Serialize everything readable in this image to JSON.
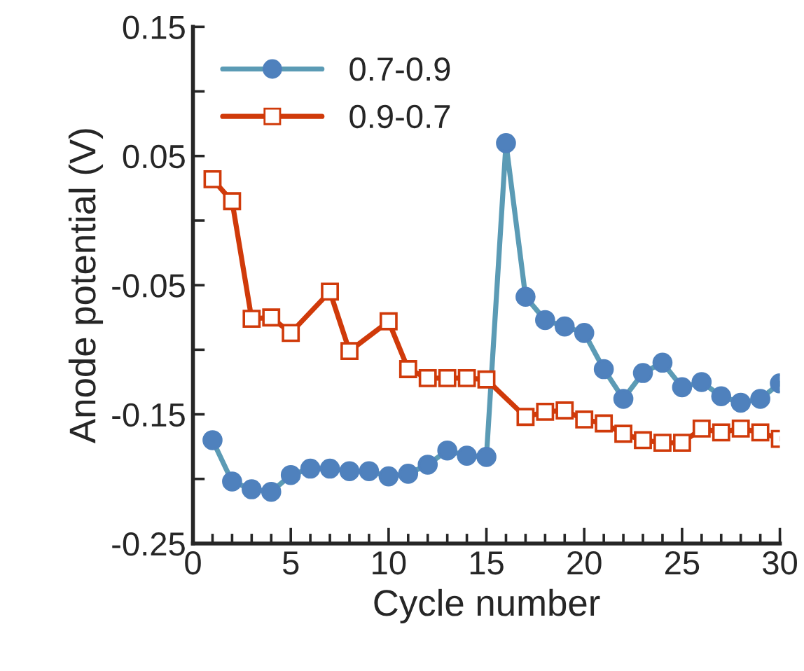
{
  "chart_data": {
    "type": "line",
    "xlabel": "Cycle number",
    "ylabel": "Anode potential (V)",
    "x": [
      1,
      2,
      3,
      4,
      5,
      6,
      7,
      8,
      9,
      10,
      11,
      12,
      13,
      14,
      15,
      16,
      17,
      18,
      19,
      20,
      21,
      22,
      23,
      24,
      25,
      26,
      27,
      28,
      29,
      30
    ],
    "series": [
      {
        "name": "0.7-0.9",
        "color": "#4f81bd",
        "marker": "circle",
        "values": [
          -0.17,
          -0.202,
          -0.208,
          -0.21,
          -0.197,
          -0.192,
          -0.192,
          -0.194,
          -0.194,
          -0.198,
          -0.196,
          -0.189,
          -0.178,
          -0.182,
          -0.183,
          0.06,
          -0.059,
          -0.077,
          -0.082,
          -0.087,
          -0.115,
          -0.138,
          -0.118,
          -0.11,
          -0.129,
          -0.125,
          -0.136,
          -0.141,
          -0.138,
          -0.126
        ]
      },
      {
        "name": "0.9-0.7",
        "color": "#d03a0a",
        "marker": "square",
        "values": [
          0.032,
          0.015,
          -0.076,
          -0.075,
          -0.087,
          null,
          -0.055,
          -0.101,
          null,
          -0.078,
          -0.115,
          -0.122,
          -0.122,
          -0.122,
          -0.123,
          null,
          -0.152,
          -0.148,
          -0.147,
          -0.154,
          -0.157,
          -0.165,
          -0.17,
          -0.172,
          -0.172,
          -0.161,
          -0.164,
          -0.161,
          -0.164,
          -0.169
        ]
      }
    ],
    "xlim": [
      0,
      30
    ],
    "xticks": [
      0,
      {
        "value": 1,
        "label": null
      },
      {
        "value": 2,
        "label": null
      },
      {
        "value": 3,
        "label": null
      },
      {
        "value": 4,
        "label": null
      },
      5,
      {
        "value": 6,
        "label": null
      },
      {
        "value": 7,
        "label": null
      },
      {
        "value": 8,
        "label": null
      },
      {
        "value": 9,
        "label": null
      },
      10,
      {
        "value": 11,
        "label": null
      },
      {
        "value": 12,
        "label": null
      },
      {
        "value": 13,
        "label": null
      },
      {
        "value": 14,
        "label": null
      },
      15,
      {
        "value": 16,
        "label": null
      },
      {
        "value": 17,
        "label": null
      },
      {
        "value": 18,
        "label": null
      },
      {
        "value": 19,
        "label": null
      },
      20,
      {
        "value": 21,
        "label": null
      },
      {
        "value": 22,
        "label": null
      },
      {
        "value": 23,
        "label": null
      },
      {
        "value": 24,
        "label": null
      },
      25,
      {
        "value": 26,
        "label": null
      },
      {
        "value": 27,
        "label": null
      },
      {
        "value": 28,
        "label": null
      },
      {
        "value": 29,
        "label": null
      },
      30
    ],
    "ylim": [
      -0.25,
      0.15
    ],
    "yticks": [
      {
        "value": -0.25,
        "label": "-0.25"
      },
      {
        "value": -0.2,
        "label": null
      },
      {
        "value": -0.15,
        "label": "-0.15"
      },
      {
        "value": -0.1,
        "label": null
      },
      {
        "value": -0.05,
        "label": "-0.05"
      },
      {
        "value": 0,
        "label": null
      },
      {
        "value": 0.05,
        "label": "0.05"
      },
      {
        "value": 0.1,
        "label": null
      },
      {
        "value": 0.15,
        "label": "0.15"
      }
    ],
    "legend": "top left",
    "grid": false,
    "line_style": "solid"
  }
}
